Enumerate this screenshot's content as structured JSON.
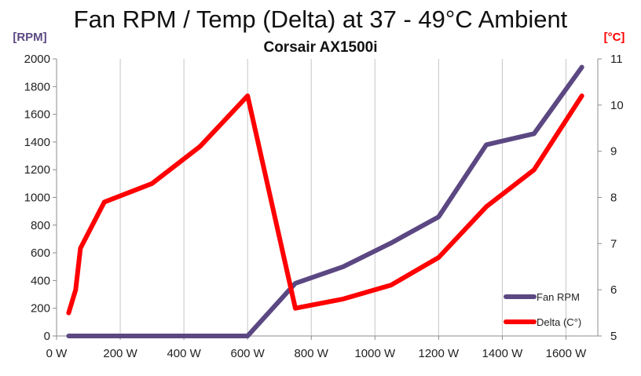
{
  "chart_data": {
    "type": "line",
    "title": "Fan RPM / Temp (Delta) at 37 - 49°C Ambient",
    "subtitle": "Corsair AX1500i",
    "ylabel_left": "[RPM]",
    "ylabel_right": "[°C]",
    "xlim": [
      0,
      1700
    ],
    "ylim_left": [
      0,
      2000
    ],
    "ylim_right": [
      5,
      11
    ],
    "x_ticks": [
      "0 W",
      "200 W",
      "400 W",
      "600 W",
      "800 W",
      "1000 W",
      "1200 W",
      "1400 W",
      "1600 W"
    ],
    "x_tick_values": [
      0,
      200,
      400,
      600,
      800,
      1000,
      1200,
      1400,
      1600
    ],
    "y_ticks_left": [
      "0",
      "200",
      "400",
      "600",
      "800",
      "1000",
      "1200",
      "1400",
      "1600",
      "1800",
      "2000"
    ],
    "y_tick_values_left": [
      0,
      200,
      400,
      600,
      800,
      1000,
      1200,
      1400,
      1600,
      1800,
      2000
    ],
    "y_ticks_right": [
      "5",
      "6",
      "7",
      "8",
      "9",
      "10",
      "11"
    ],
    "y_tick_values_right": [
      5,
      6,
      7,
      8,
      9,
      10,
      11
    ],
    "grid": "vertical",
    "legend_position": "bottom-right",
    "series": [
      {
        "name": "Fan RPM",
        "axis": "left",
        "color": "#5b4882",
        "x": [
          38,
          600,
          750,
          900,
          1050,
          1200,
          1350,
          1500,
          1650
        ],
        "y": [
          0,
          0,
          380,
          500,
          670,
          860,
          1380,
          1460,
          1940
        ]
      },
      {
        "name": "Delta (C°)",
        "axis": "right",
        "color": "#ff0000",
        "x": [
          38,
          60,
          75,
          150,
          300,
          450,
          600,
          750,
          900,
          1050,
          1200,
          1350,
          1500,
          1650
        ],
        "y": [
          5.5,
          6.0,
          6.9,
          7.9,
          8.3,
          9.1,
          10.2,
          5.6,
          5.8,
          6.1,
          6.7,
          7.8,
          8.6,
          10.2
        ]
      }
    ]
  }
}
